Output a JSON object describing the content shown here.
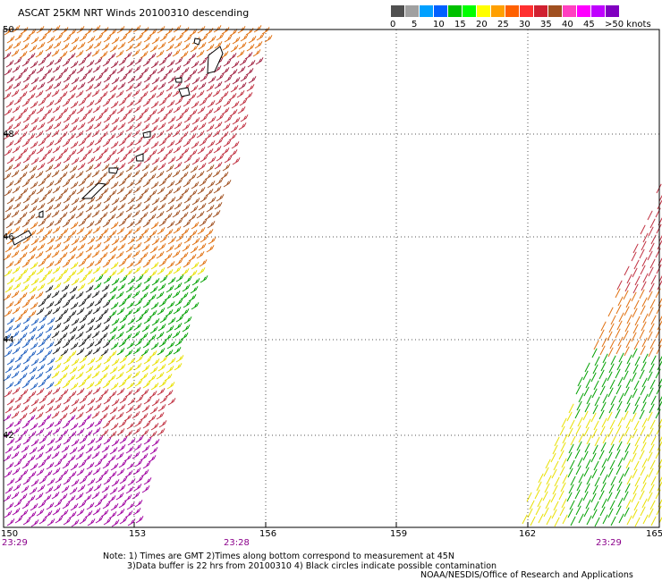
{
  "title": "ASCAT 25KM NRT Winds 20100310 descending",
  "colorbar": {
    "colors": [
      "#505050",
      "#a0a0a0",
      "#00a0ff",
      "#0060ff",
      "#00c000",
      "#00ff00",
      "#ffff00",
      "#ffa000",
      "#ff6000",
      "#ff3030",
      "#d02030",
      "#a05020",
      "#ff40c0",
      "#ff00ff",
      "#c000ff",
      "#8000c0"
    ],
    "labels": [
      "0",
      "5",
      "10",
      "15",
      "20",
      "25",
      "30",
      "35",
      "40",
      "45",
      ">50 knots"
    ]
  },
  "map": {
    "lat_labels": [
      "50",
      "48",
      "46",
      "44",
      "42"
    ],
    "lon_labels": [
      "150",
      "153",
      "156",
      "159",
      "162",
      "165"
    ],
    "time_labels": [
      "23:29",
      "23:28",
      "23:29"
    ]
  },
  "notes": {
    "line1": "Note: 1) Times are GMT 2)Times along bottom correspond to measurement at 45N",
    "line2": "3)Data buffer is 22 hrs from 20100310 4) Black circles indicate possible contamination"
  },
  "credit": "NOAA/NESDIS/Office of Research and Applications"
}
